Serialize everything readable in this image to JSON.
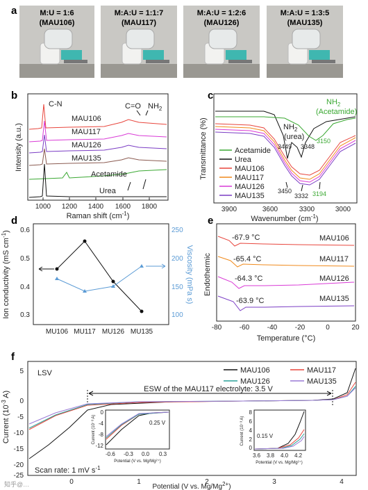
{
  "panel_a": {
    "label": "a",
    "photos": [
      {
        "title": "M:U = 1:6",
        "code": "(MAU106)"
      },
      {
        "title": "M:A:U = 1:1:7",
        "code": "(MAU117)"
      },
      {
        "title": "M:A:U = 1:2:6",
        "code": "(MAU126)"
      },
      {
        "title": "M:A:U = 1:3:5",
        "code": "(MAU135)"
      }
    ]
  },
  "panel_b": {
    "label": "b",
    "xlabel": "Raman shift (cm",
    "xlabel_sup": "-1",
    "xlabel_end": ")",
    "ylabel": "Intensity (a.u.)",
    "ticks": [
      "1000",
      "1200",
      "1400",
      "1600",
      "1800"
    ],
    "annotations": {
      "cn": "C-N",
      "co": "C=O",
      "nh2": "NH",
      "nh2_sub": "2"
    },
    "series": [
      {
        "name": "MAU106",
        "color": "#e8453c"
      },
      {
        "name": "MAU117",
        "color": "#d93ad6"
      },
      {
        "name": "MAU126",
        "color": "#7a3cc4"
      },
      {
        "name": "MAU135",
        "color": "#8a5a50"
      },
      {
        "name": "Acetamide",
        "color": "#3aa832"
      },
      {
        "name": "Urea",
        "color": "#111111"
      }
    ]
  },
  "panel_c": {
    "label": "c",
    "xlabel": "Wavenumber (cm",
    "xlabel_sup": "-1",
    "xlabel_end": ")",
    "ylabel": "Transmittance (%)",
    "ticks": [
      "3900",
      "3600",
      "3300",
      "3000"
    ],
    "annotations": {
      "nh2_urea_1": "NH",
      "nh2_urea_sub": "2",
      "nh2_urea_2": "(urea)",
      "nh2_acet_1": "NH",
      "nh2_acet_sub": "2",
      "nh2_acet_2": "(Acetamide)",
      "p3449": "3449",
      "p3348": "3348",
      "p3150": "3150",
      "p3450": "3450",
      "p3332": "3332",
      "p3194": "3194"
    },
    "legend": [
      {
        "name": "Acetamide",
        "color": "#3aa832"
      },
      {
        "name": "Urea",
        "color": "#111111"
      },
      {
        "name": "MAU106",
        "color": "#e8453c"
      },
      {
        "name": "MAU117",
        "color": "#f08a1c"
      },
      {
        "name": "MAU126",
        "color": "#d93ad6"
      },
      {
        "name": "MAU135",
        "color": "#7a3cc4"
      }
    ]
  },
  "panel_d": {
    "label": "d",
    "ylabel_left_1": "Ion conductivity (mS cm",
    "ylabel_left_sup": "-1",
    "ylabel_left_2": ")",
    "ylabel_right": "Viscosity (mPa s)",
    "left_ticks": [
      "0.3",
      "0.4",
      "0.5",
      "0.6"
    ],
    "right_ticks": [
      "100",
      "150",
      "200",
      "250"
    ],
    "categories": [
      "MU106",
      "MU117",
      "MU126",
      "MU135"
    ]
  },
  "panel_e": {
    "label": "e",
    "xlabel": "Temperature (°C)",
    "ylabel": "Endothermic",
    "ticks": [
      "-80",
      "-60",
      "-40",
      "-20",
      "0",
      "20"
    ],
    "curves": [
      {
        "name": "MAU106",
        "temp": "-67.9 °C",
        "color": "#e8453c"
      },
      {
        "name": "MAU117",
        "temp": "-65.4 °C",
        "color": "#f08a1c"
      },
      {
        "name": "MAU126",
        "temp": "-64.3 °C",
        "color": "#d93ad6"
      },
      {
        "name": "MAU135",
        "temp": "-63.9 °C",
        "color": "#7a3cc4"
      }
    ]
  },
  "panel_f": {
    "label": "f",
    "tag": "LSV",
    "xlabel": "Potential (V vs. Mg/Mg",
    "xlabel_sup": "2+",
    "xlabel_end": ")",
    "ylabel_1": "Current (10",
    "ylabel_sup": "-3",
    "ylabel_2": " A)",
    "xticks": [
      "0",
      "1",
      "2",
      "3",
      "4"
    ],
    "yticks": [
      "5",
      "0",
      "-5",
      "-10",
      "-15",
      "-20",
      "-25"
    ],
    "esw": "ESW of the MAU117 electrolyte: 3.5 V",
    "scan_rate": "Scan rate: 1 mV s",
    "scan_rate_sup": "-1",
    "legend": [
      {
        "name": "MAU106",
        "color": "#111111"
      },
      {
        "name": "MAU117",
        "color": "#e8453c"
      },
      {
        "name": "MAU126",
        "color": "#2aa198"
      },
      {
        "name": "MAU135",
        "color": "#9a7ad6"
      }
    ],
    "inset1": {
      "ylabel": "Current (10⁻³ A)",
      "xlabel": "Potential (V vs. Mg/Mg²⁺)",
      "xticks": [
        "-0.6",
        "-0.3",
        "0.0",
        "0.3"
      ],
      "yticks": [
        "0",
        "-4",
        "-8",
        "-12"
      ],
      "note": "0.25 V"
    },
    "inset2": {
      "ylabel": "Current (10⁻³ A)",
      "xlabel": "Potential (V vs. Mg/Mg²⁺)",
      "xticks": [
        "3.6",
        "3.8",
        "4.0",
        "4.2"
      ],
      "yticks": [
        "0",
        "2",
        "4",
        "6",
        "8"
      ],
      "note": "0.15 V"
    }
  },
  "watermark": "知乎@…"
}
